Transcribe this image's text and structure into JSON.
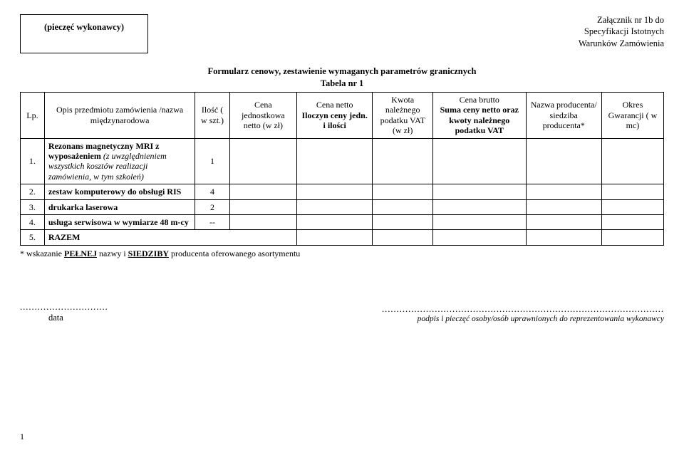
{
  "stamp_label": "(pieczęć wykonawcy)",
  "attachment": {
    "line1": "Załącznik nr 1b do",
    "line2": "Specyfikacji Istotnych",
    "line3": "Warunków Zamówienia"
  },
  "form_title": "Formularz cenowy, zestawienie wymaganych parametrów granicznych",
  "table_no": "Tabela nr 1",
  "headers": {
    "lp": "Lp.",
    "opis": "Opis przedmiotu zamówienia /nazwa międzynarodowa",
    "ilosc": "Ilość ( w szt.)",
    "cj": "Cena jednostkowa netto (w zł)",
    "cn_l1": "Cena netto",
    "cn_l2": "Iloczyn ceny jedn. i ilości",
    "kwota": "Kwota należnego podatku VAT (w zł)",
    "brutto_l1": "Cena brutto",
    "brutto_l2": "Suma ceny netto oraz kwoty należnego podatku VAT",
    "prod": "Nazwa producenta/ siedziba producenta*",
    "gw": "Okres Gwarancji ( w mc)"
  },
  "rows": [
    {
      "lp": "1.",
      "opis_bold": "Rezonans magnetyczny MRI z wyposażeniem",
      "opis_italic": " (z uwzględnieniem wszystkich kosztów realizacji zamówienia, w tym szkoleń)",
      "ilosc": "1"
    },
    {
      "lp": "2.",
      "opis_bold": "zestaw komputerowy do obsługi RIS",
      "opis_italic": "",
      "ilosc": "4"
    },
    {
      "lp": "3.",
      "opis_bold": "drukarka laserowa",
      "opis_italic": "",
      "ilosc": "2"
    },
    {
      "lp": "4.",
      "opis_bold": "usługa serwisowa w wymiarze 48 m-cy",
      "opis_italic": "",
      "ilosc": "--"
    },
    {
      "lp": "5.",
      "opis_bold": "RAZEM",
      "opis_italic": "",
      "ilosc": ""
    }
  ],
  "note_prefix": "* wskazanie ",
  "note_u1": "PEŁNEJ",
  "note_mid": " nazwy i ",
  "note_u2": "SIEDZIBY",
  "note_suffix": " producenta oferowanego asortymentu",
  "footer": {
    "dots_left": "..............................",
    "date_label": "data",
    "dots_right": "................................................................................................",
    "sig_label": "podpis i pieczęć osoby/osób uprawnionych do reprezentowania wykonawcy"
  },
  "page_number": "1"
}
